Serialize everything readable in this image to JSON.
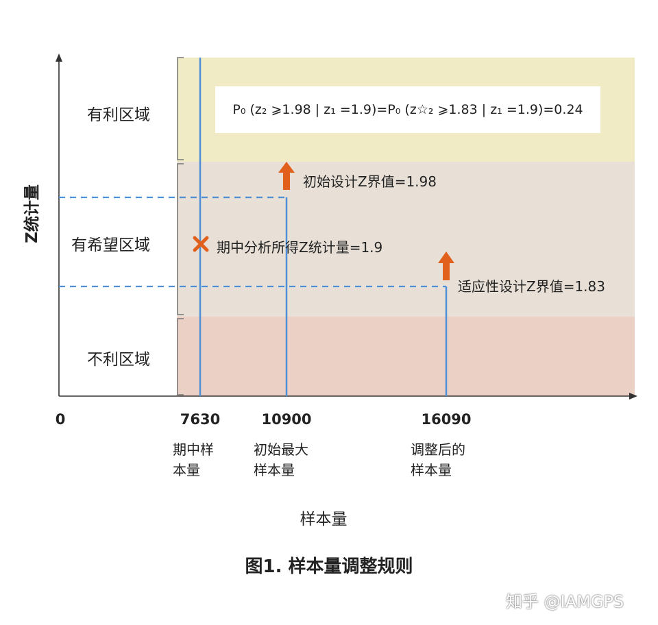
{
  "colors": {
    "favorable": "#f0ebc4",
    "promising": "#e8e0d7",
    "unfavorable": "#ebd0c6",
    "blue_line": "#4f8fd6",
    "orange": "#e0601c",
    "axis": "#333333"
  },
  "axes": {
    "y_label": "Z统计量",
    "x_label": "样本量"
  },
  "regions": [
    {
      "key": "favorable",
      "label": "有利区域"
    },
    {
      "key": "promising",
      "label": "有希望区域"
    },
    {
      "key": "unfavorable",
      "label": "不利区域"
    }
  ],
  "formula": "P₀ (z₂ ⩾1.98 | z₁ =1.9)=P₀ (z☆₂ ⩾1.83 | z₁ =1.9)=0.24",
  "annotations": {
    "initial_boundary": "初始设计Z界值=1.98",
    "interim_stat": "期中分析所得Z统计量=1.9",
    "adaptive_boundary": "适应性设计Z界值=1.83"
  },
  "x_ticks": [
    {
      "value": "0",
      "caption": []
    },
    {
      "value": "7630",
      "caption": [
        "期中样",
        "本量"
      ]
    },
    {
      "value": "10900",
      "caption": [
        "初始最大",
        "样本量"
      ]
    },
    {
      "value": "16090",
      "caption": [
        "调整后的",
        "样本量"
      ]
    }
  ],
  "figure_caption": "图1. 样本量调整规则",
  "watermark": "知乎 @IAMGPS",
  "icons": {
    "interim_marker": "cross-icon",
    "boundary_marker": "arrow-up-icon"
  }
}
